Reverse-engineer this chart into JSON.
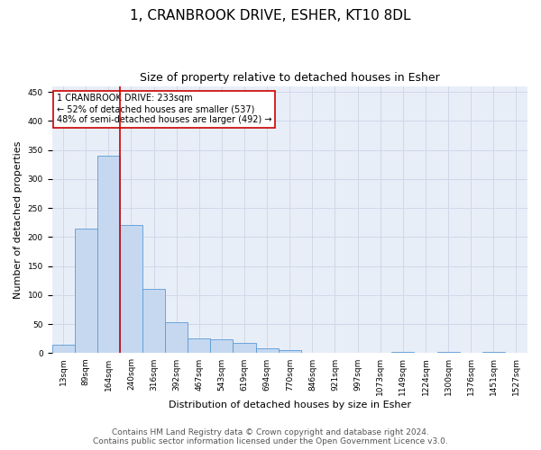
{
  "title": "1, CRANBROOK DRIVE, ESHER, KT10 8DL",
  "subtitle": "Size of property relative to detached houses in Esher",
  "xlabel": "Distribution of detached houses by size in Esher",
  "ylabel": "Number of detached properties",
  "categories": [
    "13sqm",
    "89sqm",
    "164sqm",
    "240sqm",
    "316sqm",
    "392sqm",
    "467sqm",
    "543sqm",
    "619sqm",
    "694sqm",
    "770sqm",
    "846sqm",
    "921sqm",
    "997sqm",
    "1073sqm",
    "1149sqm",
    "1224sqm",
    "1300sqm",
    "1376sqm",
    "1451sqm",
    "1527sqm"
  ],
  "values": [
    15,
    215,
    340,
    220,
    110,
    53,
    25,
    24,
    17,
    9,
    6,
    1,
    1,
    1,
    0,
    3,
    0,
    3,
    0,
    3,
    1
  ],
  "bar_color": "#c5d8f0",
  "bar_edge_color": "#5b9bd5",
  "vline_x": 2.5,
  "vline_color": "#cc0000",
  "annotation_box_text": "1 CRANBROOK DRIVE: 233sqm\n← 52% of detached houses are smaller (537)\n48% of semi-detached houses are larger (492) →",
  "annotation_box_color": "#cc0000",
  "annotation_box_fill": "#ffffff",
  "ylim": [
    0,
    460
  ],
  "yticks": [
    0,
    50,
    100,
    150,
    200,
    250,
    300,
    350,
    400,
    450
  ],
  "grid_color": "#d0d8e8",
  "bg_color": "#e8eef8",
  "footer_line1": "Contains HM Land Registry data © Crown copyright and database right 2024.",
  "footer_line2": "Contains public sector information licensed under the Open Government Licence v3.0.",
  "title_fontsize": 11,
  "subtitle_fontsize": 9,
  "axis_label_fontsize": 8,
  "tick_fontsize": 6.5,
  "footer_fontsize": 6.5
}
